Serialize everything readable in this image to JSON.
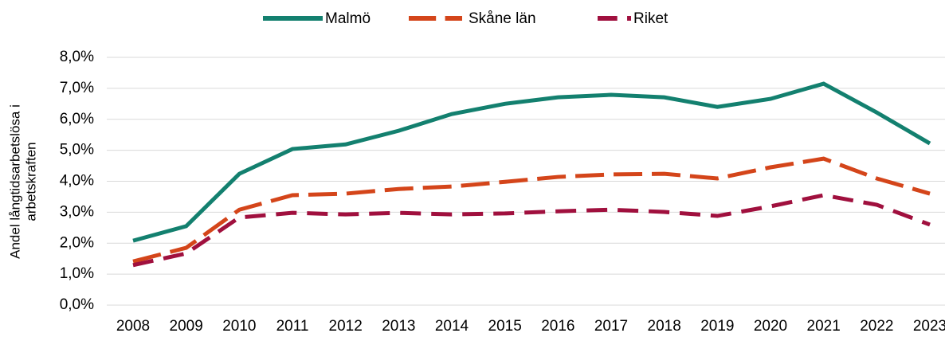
{
  "chart_data": {
    "type": "line",
    "ylabel": [
      "Andel långtidsarbetslösa i",
      "arbetskraften"
    ],
    "categories": [
      "2008",
      "2009",
      "2010",
      "2011",
      "2012",
      "2013",
      "2014",
      "2015",
      "2016",
      "2017",
      "2018",
      "2019",
      "2020",
      "2021",
      "2022",
      "2023"
    ],
    "series": [
      {
        "name": "Malmö",
        "color": "#13806f",
        "dash": "none",
        "values": [
          2.08,
          2.55,
          4.24,
          5.04,
          5.19,
          5.63,
          6.17,
          6.5,
          6.71,
          6.79,
          6.71,
          6.4,
          6.66,
          7.15,
          6.22,
          5.22
        ]
      },
      {
        "name": "Skåne län",
        "color": "#d4451a",
        "dash": "36 12",
        "values": [
          1.41,
          1.85,
          3.08,
          3.55,
          3.6,
          3.75,
          3.83,
          3.98,
          4.14,
          4.22,
          4.24,
          4.09,
          4.45,
          4.73,
          4.09,
          3.6
        ]
      },
      {
        "name": "Riket",
        "color": "#a0103e",
        "dash": "26 13",
        "values": [
          1.29,
          1.67,
          2.83,
          2.98,
          2.93,
          2.98,
          2.93,
          2.96,
          3.03,
          3.08,
          3.01,
          2.88,
          3.19,
          3.55,
          3.24,
          2.6
        ]
      }
    ],
    "ylim": [
      0,
      8
    ],
    "yticks": [
      {
        "value": 0,
        "label": "0,0%"
      },
      {
        "value": 1,
        "label": "1,0%"
      },
      {
        "value": 2,
        "label": "2,0%"
      },
      {
        "value": 3,
        "label": "3,0%"
      },
      {
        "value": 4,
        "label": "4,0%"
      },
      {
        "value": 5,
        "label": "5,0%"
      },
      {
        "value": 6,
        "label": "6,0%"
      },
      {
        "value": 7,
        "label": "7,0%"
      },
      {
        "value": 8,
        "label": "8,0%"
      }
    ],
    "grid": true,
    "legend": "top"
  }
}
